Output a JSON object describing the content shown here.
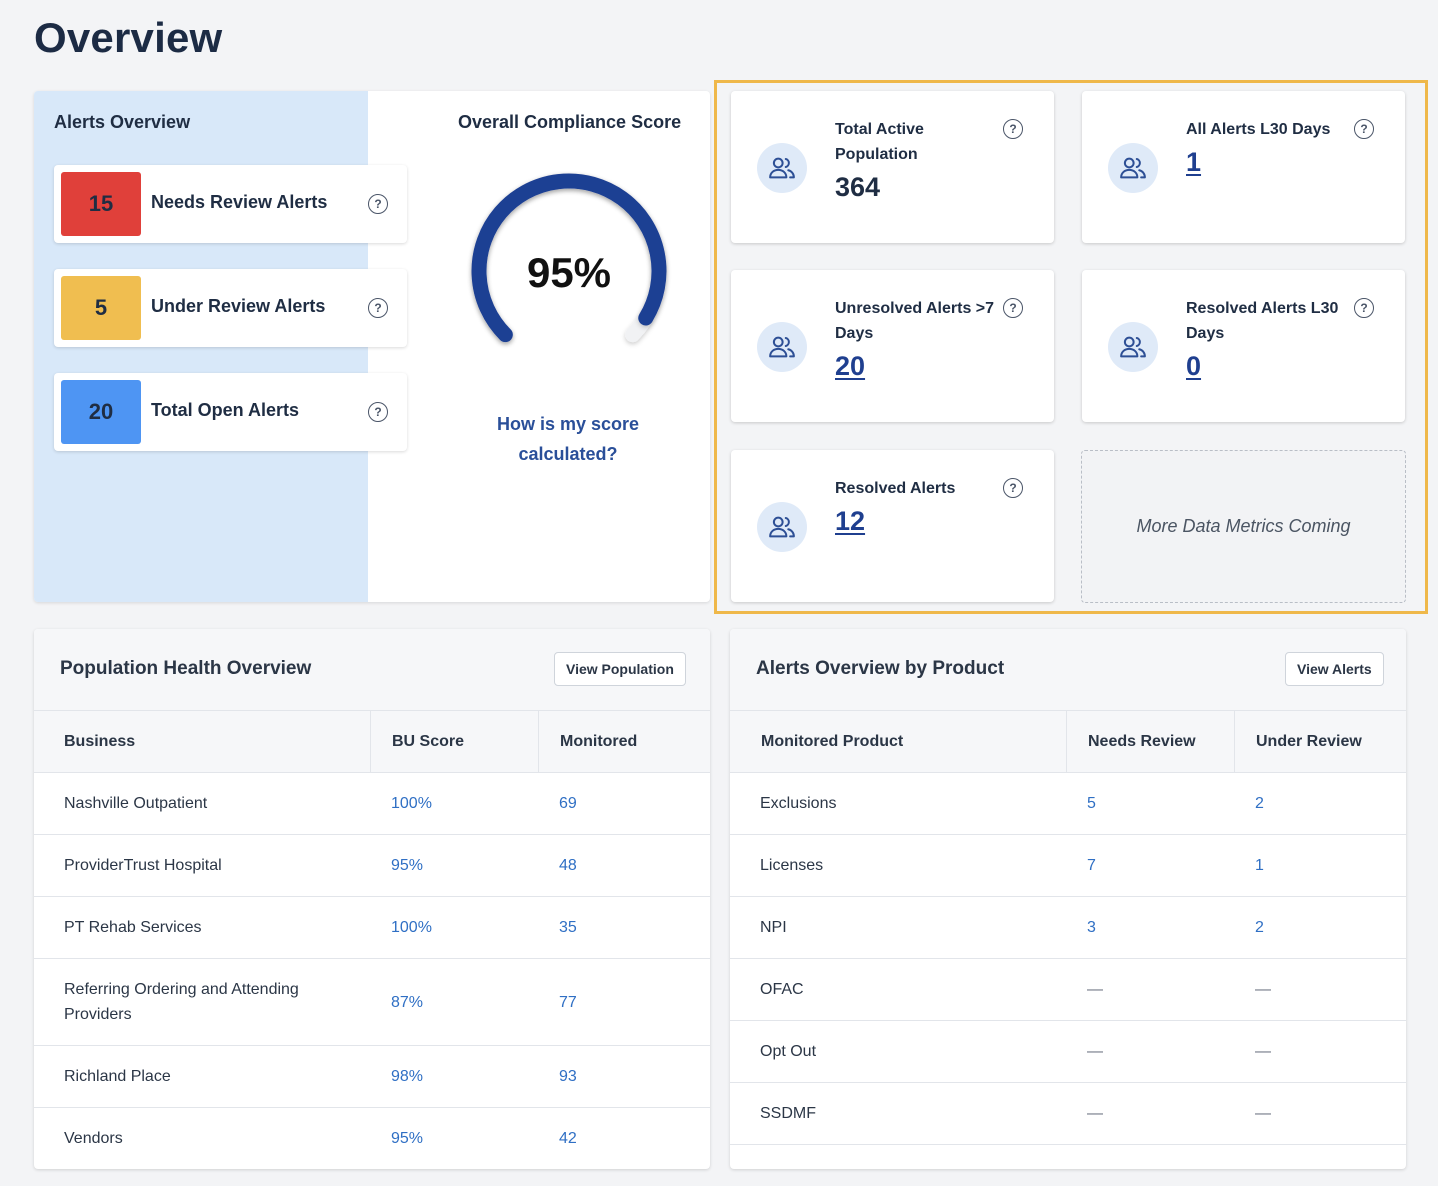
{
  "page": {
    "title": "Overview"
  },
  "alerts_overview": {
    "title": "Alerts Overview",
    "items": [
      {
        "count": "15",
        "label": "Needs Review Alerts",
        "color": "#e0403a"
      },
      {
        "count": "5",
        "label": "Under Review Alerts",
        "color": "#f0be50"
      },
      {
        "count": "20",
        "label": "Total Open Alerts",
        "color": "#4e95f3"
      }
    ]
  },
  "compliance": {
    "title": "Overall Compliance Score",
    "value_text": "95%",
    "value": 95,
    "link": "How is my score calculated?",
    "color": "#1f3f93"
  },
  "metrics": [
    {
      "label": "Total Active Population",
      "value": "364",
      "is_link": false
    },
    {
      "label": "All Alerts L30 Days",
      "value": "1",
      "is_link": true
    },
    {
      "label": "Unresolved Alerts >7 Days",
      "value": "20",
      "is_link": true
    },
    {
      "label": "Resolved Alerts L30 Days",
      "value": "0",
      "is_link": true
    },
    {
      "label": "Resolved Alerts",
      "value": "12",
      "is_link": true
    }
  ],
  "placeholder": "More Data Metrics Coming",
  "population": {
    "title": "Population Health Overview",
    "button": "View Population",
    "columns": [
      "Business",
      "BU Score",
      "Monitored"
    ],
    "rows": [
      [
        "Nashville Outpatient",
        "100%",
        "69"
      ],
      [
        "ProviderTrust Hospital",
        "95%",
        "48"
      ],
      [
        "PT Rehab Services",
        "100%",
        "35"
      ],
      [
        "Referring Ordering and Attending Providers",
        "87%",
        "77"
      ],
      [
        "Richland Place",
        "98%",
        "93"
      ],
      [
        "Vendors",
        "95%",
        "42"
      ]
    ]
  },
  "products": {
    "title": "Alerts Overview by Product",
    "button": "View Alerts",
    "columns": [
      "Monitored Product",
      "Needs Review",
      "Under Review"
    ],
    "rows": [
      [
        "Exclusions",
        "5",
        "2"
      ],
      [
        "Licenses",
        "7",
        "1"
      ],
      [
        "NPI",
        "3",
        "2"
      ],
      [
        "OFAC",
        "—",
        "—"
      ],
      [
        "Opt Out",
        "—",
        "—"
      ],
      [
        "SSDMF",
        "—",
        "—"
      ]
    ]
  },
  "colors": {
    "highlight": "#efb84a",
    "link": "#2f6fc4"
  },
  "icons": {
    "help": "question-circle-icon",
    "metric": "users-icon"
  }
}
